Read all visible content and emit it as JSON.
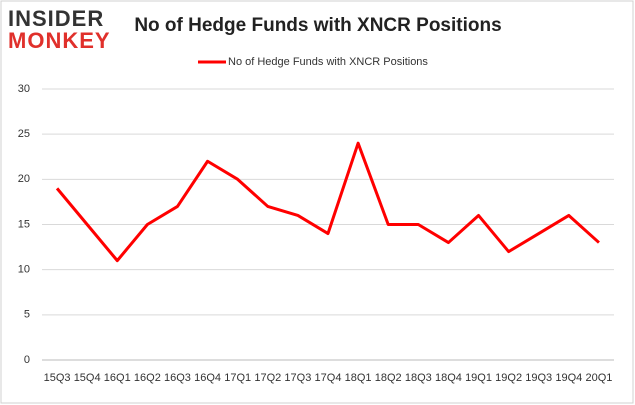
{
  "chart_data": {
    "type": "line",
    "title": "No of Hedge Funds with XNCR Positions",
    "brand": [
      "INSIDER",
      "MONKEY"
    ],
    "categories": [
      "15Q3",
      "15Q4",
      "16Q1",
      "16Q2",
      "16Q3",
      "16Q4",
      "17Q1",
      "17Q2",
      "17Q3",
      "17Q4",
      "18Q1",
      "18Q2",
      "18Q3",
      "18Q4",
      "19Q1",
      "19Q2",
      "19Q3",
      "19Q4",
      "20Q1"
    ],
    "series": [
      {
        "name": "No of Hedge Funds with XNCR Positions",
        "color": "#ff0000",
        "values": [
          19,
          15,
          11,
          15,
          17,
          22,
          20,
          17,
          16,
          14,
          24,
          15,
          15,
          13,
          16,
          12,
          14,
          16,
          13
        ]
      }
    ],
    "ylim": [
      0,
      30
    ],
    "yticks": [
      0,
      5,
      10,
      15,
      20,
      25,
      30
    ],
    "grid": true,
    "legend": "top"
  }
}
